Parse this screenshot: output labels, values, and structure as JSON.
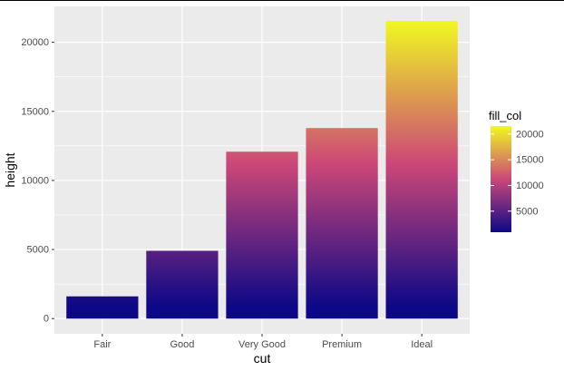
{
  "chart_data": {
    "type": "bar",
    "categories": [
      "Fair",
      "Good",
      "Very Good",
      "Premium",
      "Ideal"
    ],
    "values": [
      1610,
      4906,
      12082,
      13791,
      21551
    ],
    "xlabel": "cut",
    "ylabel": "height",
    "ylim": [
      -1100,
      22600
    ],
    "yticks": [
      0,
      5000,
      10000,
      15000,
      20000
    ],
    "ytick_labels": [
      "0",
      "5000",
      "10000",
      "15000",
      "20000"
    ],
    "grid": true,
    "legend": {
      "title": "fill_col",
      "position": "right",
      "range": [
        900,
        21551
      ],
      "ticks": [
        5000,
        10000,
        15000,
        20000
      ],
      "tick_labels": [
        "5000",
        "10000",
        "15000",
        "20000"
      ]
    },
    "colors": {
      "panel": "#EBEBEB",
      "grid": "#FFFFFF",
      "gradient_low": "#0D0887",
      "gradient_mid": "#CC4778",
      "gradient_high": "#F0F921"
    }
  }
}
